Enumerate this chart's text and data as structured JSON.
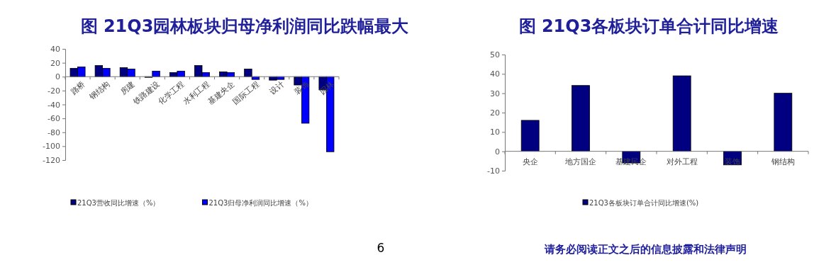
{
  "chart_data": [
    {
      "type": "bar",
      "title": "图 21Q3园林板块归母净利润同比跌幅最大",
      "categories": [
        "路桥",
        "钢结构",
        "房建",
        "铁路建设",
        "化学工程",
        "水利工程",
        "基建央企",
        "国际工程",
        "设计",
        "装饰",
        "园林"
      ],
      "series": [
        {
          "name": "21Q3营收同比增速（%）",
          "color": "#000080",
          "values": [
            12,
            16,
            13,
            -1,
            6,
            16,
            7,
            11,
            -5,
            -12,
            -19
          ]
        },
        {
          "name": "21Q3归母净利润同比增速（%）",
          "color": "#0000ff",
          "values": [
            14,
            12,
            11,
            8,
            8,
            6,
            6,
            -4,
            -4,
            -67,
            -108
          ]
        }
      ],
      "ylim": [
        -120,
        40
      ],
      "yticks": [
        -120,
        -100,
        -80,
        -60,
        -40,
        -20,
        0,
        20,
        40
      ],
      "grid": false,
      "legend": "bottom"
    },
    {
      "type": "bar",
      "title": "图 21Q3各板块订单合计同比增速",
      "categories": [
        "央企",
        "地方国企",
        "基建民企",
        "对外工程",
        "装饰",
        "钢结构"
      ],
      "series": [
        {
          "name": "21Q3各板块订单合计同比增速(%)",
          "color": "#000080",
          "values": [
            16,
            34,
            -6,
            39,
            -7,
            30
          ]
        }
      ],
      "ylim": [
        -10,
        50
      ],
      "yticks": [
        -10,
        0,
        10,
        20,
        30,
        40,
        50
      ],
      "grid": false,
      "legend": "bottom",
      "annotations": [
        "6",
        "请务必阅读正文之后的信息披露和法律声明"
      ]
    }
  ]
}
